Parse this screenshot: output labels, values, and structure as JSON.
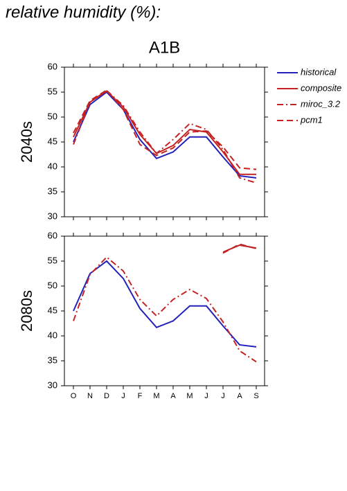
{
  "heading": "relative humidity (%):",
  "chart_data": [
    {
      "type": "line",
      "title": "A1B",
      "ylabel": "2040s",
      "ylim": [
        30,
        60
      ],
      "yticks": [
        30,
        35,
        40,
        45,
        50,
        55,
        60
      ],
      "legend": "outside-right",
      "series": [
        {
          "name": "historical",
          "color": "#2222bb",
          "dash": "solid",
          "values": [
            45,
            52.5,
            55,
            51.5,
            45.5,
            41.7,
            43,
            46,
            46,
            42,
            38.2,
            37.8
          ]
        },
        {
          "name": "composite",
          "color": "#c42222",
          "dash": "solid",
          "values": [
            46,
            53,
            55.2,
            52,
            46.5,
            42.7,
            44.3,
            47.5,
            47,
            43,
            38.5,
            38.5
          ]
        },
        {
          "name": "miroc_3.2",
          "color": "#c42222",
          "dash": "dashdot",
          "values": [
            44.5,
            53,
            55.3,
            52.3,
            47,
            42.7,
            45.5,
            48.7,
            47.5,
            43.5,
            37.8,
            36.8
          ]
        },
        {
          "name": "pcm1",
          "color": "#c42222",
          "dash": "dash",
          "values": [
            46.8,
            53.3,
            55.4,
            51.5,
            44.5,
            42.3,
            43.8,
            47,
            47.2,
            44,
            39.8,
            39.5
          ]
        }
      ]
    },
    {
      "type": "line",
      "ylabel": "2080s",
      "categories": [
        "O",
        "N",
        "D",
        "J",
        "F",
        "M",
        "A",
        "M",
        "J",
        "J",
        "A",
        "S"
      ],
      "ylim": [
        30,
        60
      ],
      "yticks": [
        30,
        35,
        40,
        45,
        50,
        55,
        60
      ],
      "series": [
        {
          "name": "historical",
          "color": "#2222bb",
          "dash": "solid",
          "values": [
            45,
            52.5,
            55,
            51.5,
            45.5,
            41.7,
            43,
            46,
            46,
            42,
            38.2,
            37.8
          ]
        },
        {
          "name": "composite",
          "color": "#c42222",
          "dash": "solid",
          "values": [
            null,
            null,
            null,
            null,
            null,
            null,
            null,
            null,
            null,
            56.8,
            58.2,
            57.6
          ]
        },
        {
          "name": "miroc_3.2",
          "color": "#c42222",
          "dash": "dashdot",
          "values": [
            43,
            52.3,
            55.8,
            53,
            47.3,
            44,
            47.3,
            49.3,
            47.5,
            42.8,
            37,
            34.8
          ]
        },
        {
          "name": "pcm1",
          "color": "#c42222",
          "dash": "dash",
          "values": [
            null,
            null,
            null,
            null,
            null,
            null,
            null,
            null,
            null,
            56.6,
            58.4,
            57.5
          ]
        }
      ]
    }
  ]
}
